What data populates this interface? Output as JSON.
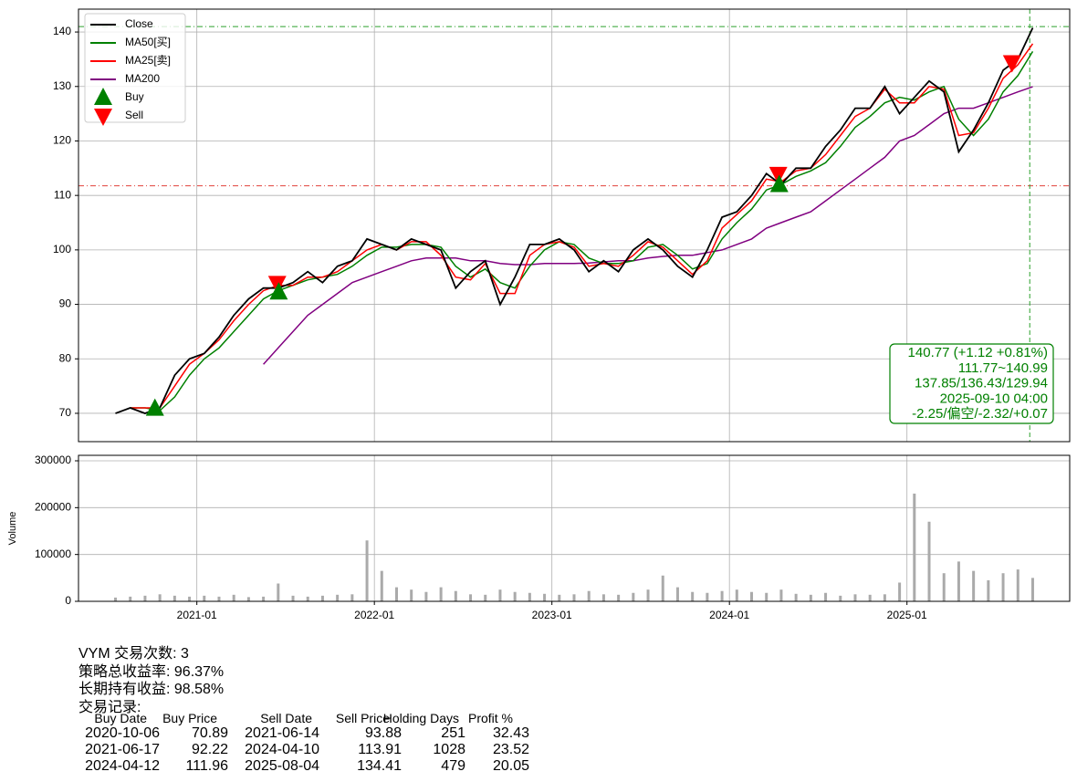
{
  "chart_data": [
    {
      "type": "line",
      "x": [
        "2020-07",
        "2020-08",
        "2020-09",
        "2020-10",
        "2020-11",
        "2020-12",
        "2021-01",
        "2021-02",
        "2021-03",
        "2021-04",
        "2021-05",
        "2021-06",
        "2021-07",
        "2021-08",
        "2021-09",
        "2021-10",
        "2021-11",
        "2021-12",
        "2022-01",
        "2022-02",
        "2022-03",
        "2022-04",
        "2022-05",
        "2022-06",
        "2022-07",
        "2022-08",
        "2022-09",
        "2022-10",
        "2022-11",
        "2022-12",
        "2023-01",
        "2023-02",
        "2023-03",
        "2023-04",
        "2023-05",
        "2023-06",
        "2023-07",
        "2023-08",
        "2023-09",
        "2023-10",
        "2023-11",
        "2023-12",
        "2024-01",
        "2024-02",
        "2024-03",
        "2024-04",
        "2024-05",
        "2024-06",
        "2024-07",
        "2024-08",
        "2024-09",
        "2024-10",
        "2024-11",
        "2024-12",
        "2025-01",
        "2025-02",
        "2025-03",
        "2025-04",
        "2025-05",
        "2025-06",
        "2025-07",
        "2025-08",
        "2025-09"
      ],
      "xlim": [
        "2020-05",
        "2025-12"
      ],
      "ylim": [
        64.8,
        144.2
      ],
      "yticks": [
        70,
        80,
        90,
        100,
        110,
        120,
        130,
        140
      ],
      "grid": true,
      "legend_loc": "upper left",
      "series": [
        {
          "name": "Close",
          "color": "#000000",
          "values": [
            70,
            71,
            70,
            71,
            77,
            80,
            81,
            84,
            88,
            91,
            93,
            93,
            94,
            96,
            94,
            97,
            98,
            102,
            101,
            100,
            102,
            101,
            100,
            93,
            96,
            98,
            90,
            95,
            101,
            101,
            102,
            100,
            96,
            98,
            96,
            100,
            102,
            100,
            97,
            95,
            100,
            106,
            107,
            110,
            114,
            112,
            115,
            115,
            119,
            122,
            126,
            126,
            130,
            125,
            128,
            131,
            129,
            118,
            122,
            127,
            133,
            135,
            140.77
          ]
        },
        {
          "name": "MA50[买]",
          "color": "#008000",
          "values": [
            null,
            71,
            71,
            70.5,
            73,
            77,
            80,
            82,
            85,
            88,
            91,
            92.5,
            93.5,
            94.5,
            95,
            95.5,
            97,
            99,
            100.5,
            100.5,
            101,
            101,
            100.5,
            97,
            95,
            96.5,
            94,
            93,
            97,
            100,
            101.5,
            101,
            98.5,
            97.5,
            97.5,
            98,
            100.5,
            101,
            99,
            96.5,
            97.5,
            102,
            105,
            107.5,
            111,
            112,
            113.5,
            114.5,
            116,
            119,
            122.5,
            124.5,
            127,
            128,
            127.5,
            129,
            130,
            124,
            121,
            124,
            129,
            132,
            136.43
          ]
        },
        {
          "name": "MA25[卖]",
          "color": "#ff0000",
          "values": [
            null,
            71,
            71,
            71,
            75,
            79,
            81,
            83.5,
            87,
            90,
            92.5,
            93.5,
            93.5,
            95,
            95,
            96,
            98,
            100,
            101,
            100,
            101.5,
            101.5,
            99,
            95,
            94.5,
            97.5,
            92,
            92,
            99,
            101,
            101.5,
            100.5,
            97,
            97.5,
            97,
            99,
            101.5,
            100.5,
            98,
            95.5,
            98,
            104,
            106.5,
            109,
            113,
            112.5,
            114.5,
            115,
            117.5,
            121,
            124.5,
            126,
            129.5,
            127,
            127,
            130,
            129.5,
            121,
            121.5,
            126,
            131.5,
            134,
            137.85
          ]
        },
        {
          "name": "MA200",
          "color": "#800080",
          "values": [
            null,
            null,
            null,
            null,
            null,
            null,
            null,
            null,
            null,
            null,
            79,
            82,
            85,
            88,
            90,
            92,
            94,
            95,
            96,
            97,
            98,
            98.5,
            98.5,
            98.5,
            98,
            98,
            97.5,
            97.3,
            97.3,
            97.5,
            97.5,
            97.5,
            97.6,
            97.8,
            98,
            98,
            98.5,
            98.8,
            99,
            99,
            99.5,
            100,
            101,
            102,
            104,
            105,
            106,
            107,
            109,
            111,
            113,
            115,
            117,
            120,
            121,
            123,
            125,
            126,
            126,
            127,
            128,
            129,
            129.94
          ]
        }
      ],
      "markers": [
        {
          "name": "Buy",
          "color": "#008000",
          "shape": "up"
        },
        {
          "name": "Sell",
          "color": "#ff0000",
          "shape": "down"
        }
      ],
      "hlines": [
        {
          "value": 140.99,
          "color": "#2ca02c"
        },
        {
          "value": 111.77,
          "color": "#e0403a"
        }
      ],
      "vline": {
        "x": "2025-09-10",
        "color": "#2ca02c"
      },
      "annotation": {
        "color": "#008000",
        "lines": [
          "140.77 (+1.12 +0.81%)",
          "111.77~140.99",
          "137.85/136.43/129.94",
          "2025-09-10 04:00",
          "-2.25/偏空/-2.32/+0.07"
        ]
      }
    },
    {
      "type": "bar",
      "x": [
        "2020-07",
        "2020-08",
        "2020-09",
        "2020-10",
        "2020-11",
        "2020-12",
        "2021-01",
        "2021-02",
        "2021-03",
        "2021-04",
        "2021-05",
        "2021-06",
        "2021-07",
        "2021-08",
        "2021-09",
        "2021-10",
        "2021-11",
        "2021-12",
        "2022-01",
        "2022-02",
        "2022-03",
        "2022-04",
        "2022-05",
        "2022-06",
        "2022-07",
        "2022-08",
        "2022-09",
        "2022-10",
        "2022-11",
        "2022-12",
        "2023-01",
        "2023-02",
        "2023-03",
        "2023-04",
        "2023-05",
        "2023-06",
        "2023-07",
        "2023-08",
        "2023-09",
        "2023-10",
        "2023-11",
        "2023-12",
        "2024-01",
        "2024-02",
        "2024-03",
        "2024-04",
        "2024-05",
        "2024-06",
        "2024-07",
        "2024-08",
        "2024-09",
        "2024-10",
        "2024-11",
        "2024-12",
        "2025-01",
        "2025-02",
        "2025-03",
        "2025-04",
        "2025-05",
        "2025-06",
        "2025-07",
        "2025-08",
        "2025-09"
      ],
      "values": [
        8000,
        10000,
        12000,
        15000,
        12000,
        10000,
        12000,
        10000,
        14000,
        9000,
        10000,
        38000,
        12000,
        10000,
        12000,
        14000,
        15000,
        130000,
        65000,
        30000,
        25000,
        20000,
        30000,
        22000,
        15000,
        14000,
        25000,
        20000,
        18000,
        16000,
        14000,
        15000,
        22000,
        15000,
        14000,
        18000,
        25000,
        55000,
        30000,
        20000,
        18000,
        22000,
        25000,
        20000,
        18000,
        25000,
        16000,
        14000,
        18000,
        12000,
        15000,
        14000,
        15000,
        40000,
        230000,
        170000,
        60000,
        85000,
        65000,
        45000,
        60000,
        68000,
        50000
      ],
      "color": "#aaaaaa",
      "xlim": [
        "2020-05",
        "2025-12"
      ],
      "xticks": [
        "2021-01",
        "2022-01",
        "2023-01",
        "2024-01",
        "2025-01"
      ],
      "ylim": [
        0,
        311700
      ],
      "yticks": [
        0,
        100000,
        200000,
        300000
      ],
      "ylabel": "Volume",
      "grid": true
    }
  ],
  "summary": [
    "VYM 交易次数: 3",
    "策略总收益率: 96.37%",
    "长期持有收益: 98.58%",
    "交易记录:"
  ],
  "trades": {
    "header": [
      "Buy Date",
      "Buy Price",
      "Sell Date",
      "Sell Price",
      "Holding Days",
      "Profit %"
    ],
    "rows": [
      [
        "2020-10-06",
        70.89,
        "2021-06-14",
        93.88,
        251,
        32.43
      ],
      [
        "2021-06-17",
        92.22,
        "2024-04-10",
        113.91,
        1028,
        23.52
      ],
      [
        "2024-04-12",
        111.96,
        "2025-08-04",
        134.41,
        479,
        20.05
      ]
    ]
  }
}
